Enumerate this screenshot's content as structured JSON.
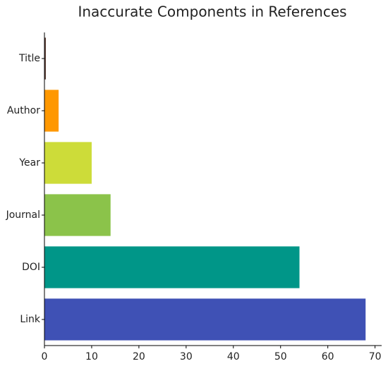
{
  "chart_data": {
    "type": "barh",
    "title": "Inaccurate Components in References",
    "categories": [
      "Title",
      "Author",
      "Year",
      "Journal",
      "DOI",
      "Link"
    ],
    "values": [
      0.3,
      3,
      10,
      14,
      54,
      68
    ],
    "colors": [
      "#5d4037",
      "#ff9800",
      "#cddc39",
      "#8bc34a",
      "#009688",
      "#3f51b5"
    ],
    "xlim": [
      0,
      71.4
    ],
    "xticks": [
      0,
      10,
      20,
      30,
      40,
      50,
      60,
      70
    ]
  }
}
